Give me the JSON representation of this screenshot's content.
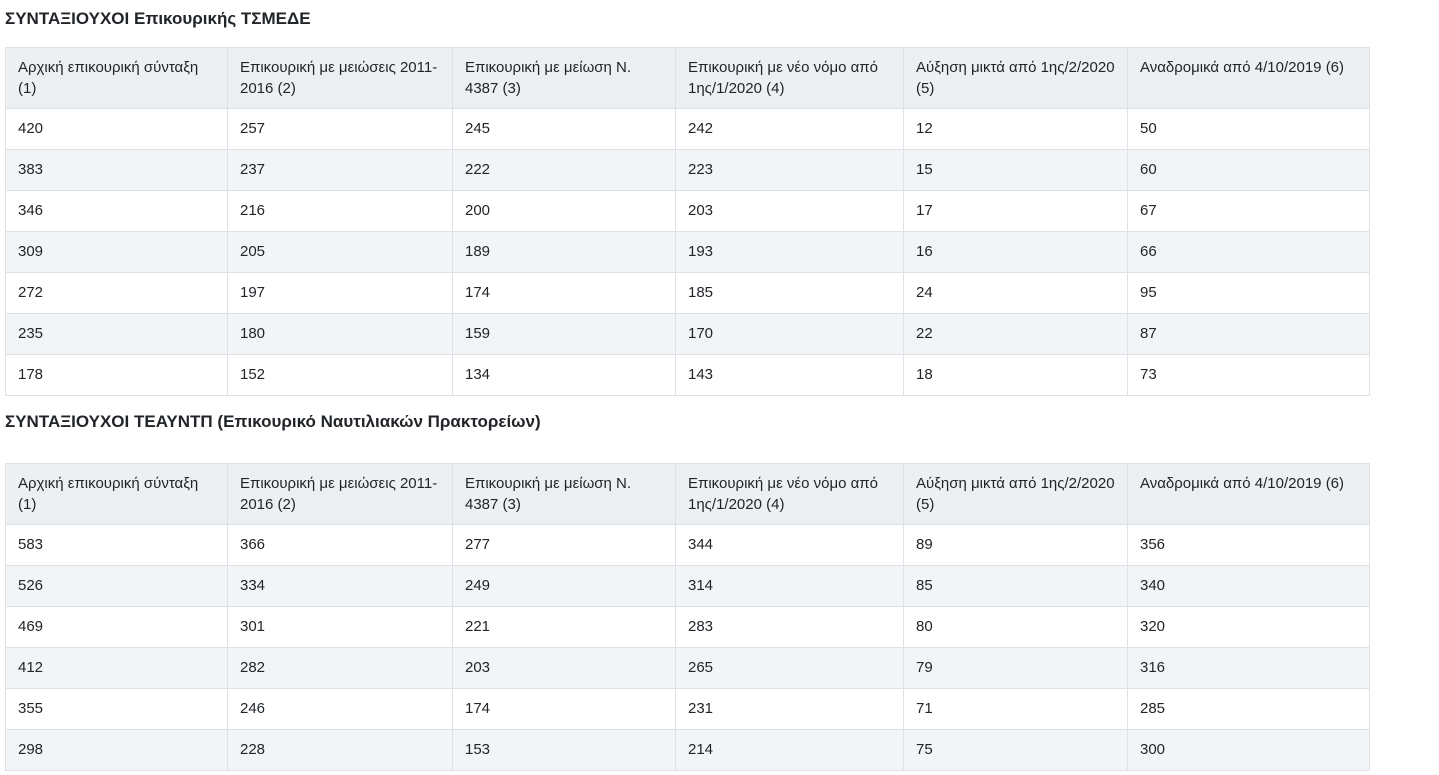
{
  "colors": {
    "header_background": "#edf0f3",
    "stripe_background": "#f1f5f8",
    "border": "#dee2e6",
    "text": "#212529"
  },
  "sections": [
    {
      "title": "ΣΥΝΤΑΞΙΟΥΧΟΙ Επικουρικής ΤΣΜΕΔΕ",
      "table": {
        "headers": [
          "Αρχική επικουρική σύνταξη (1)",
          "Επικουρική με μειώσεις 2011-2016 (2)",
          "Επικουρική με μείωση Ν. 4387 (3)",
          "Επικουρική με νέο νόμο από 1ης/1/2020 (4)",
          "Αύξηση μικτά από 1ης/2/2020 (5)",
          "Αναδρομικά από 4/10/2019 (6)"
        ],
        "rows": [
          [
            "420",
            "257",
            "245",
            "242",
            "12",
            "50"
          ],
          [
            "383",
            "237",
            "222",
            "223",
            "15",
            "60"
          ],
          [
            "346",
            "216",
            "200",
            "203",
            "17",
            "67"
          ],
          [
            "309",
            "205",
            "189",
            "193",
            "16",
            "66"
          ],
          [
            "272",
            "197",
            "174",
            "185",
            "24",
            "95"
          ],
          [
            "235",
            "180",
            "159",
            "170",
            "22",
            "87"
          ],
          [
            "178",
            "152",
            "134",
            "143",
            "18",
            "73"
          ]
        ]
      }
    },
    {
      "title": "ΣΥΝΤΑΞΙΟΥΧΟΙ ΤΕΑΥΝΤΠ (Επικουρικό Ναυτιλιακών Πρακτορείων)",
      "table": {
        "headers": [
          "Αρχική επικουρική σύνταξη (1)",
          "Επικουρική με μειώσεις 2011-2016 (2)",
          "Επικουρική με μείωση Ν. 4387 (3)",
          "Επικουρική με νέο νόμο από 1ης/1/2020 (4)",
          "Αύξηση μικτά από 1ης/2/2020 (5)",
          "Αναδρομικά από 4/10/2019 (6)"
        ],
        "rows": [
          [
            "583",
            "366",
            "277",
            "344",
            "89",
            "356"
          ],
          [
            "526",
            "334",
            "249",
            "314",
            "85",
            "340"
          ],
          [
            "469",
            "301",
            "221",
            "283",
            "80",
            "320"
          ],
          [
            "412",
            "282",
            "203",
            "265",
            "79",
            "316"
          ],
          [
            "355",
            "246",
            "174",
            "231",
            "71",
            "285"
          ],
          [
            "298",
            "228",
            "153",
            "214",
            "75",
            "300"
          ]
        ]
      }
    }
  ]
}
